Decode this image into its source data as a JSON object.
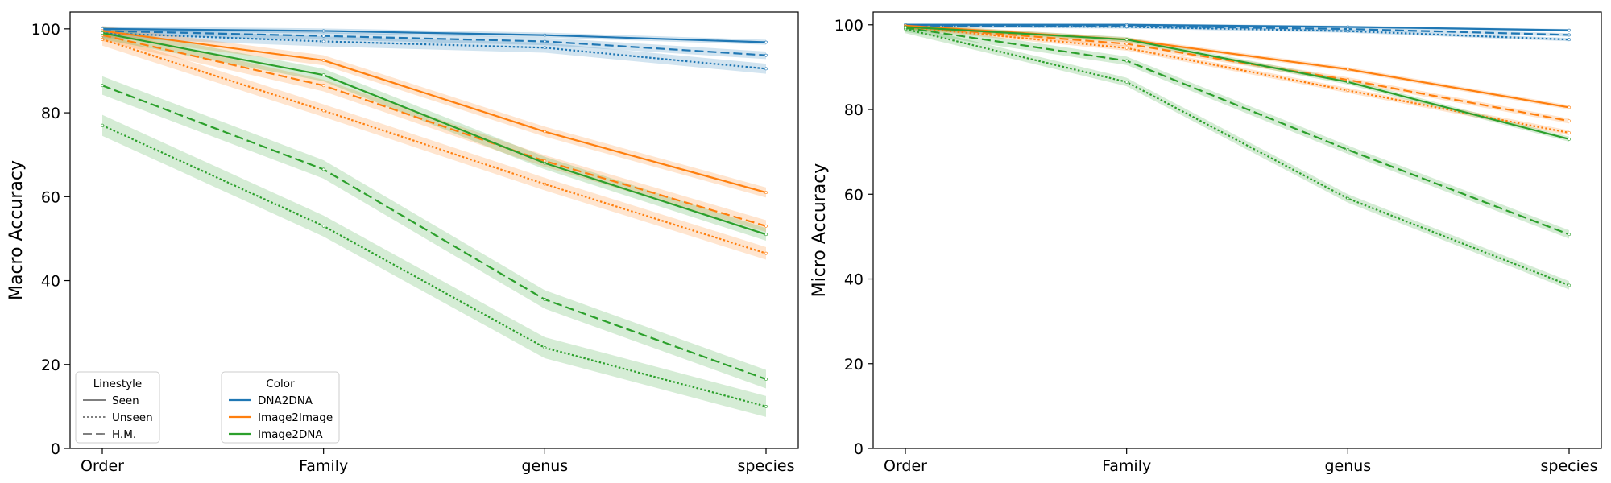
{
  "colors": {
    "DNA2DNA": "#1f77b4",
    "Image2Image": "#ff7f0e",
    "Image2DNA": "#2ca02c",
    "legend_line": "#555555"
  },
  "legends": {
    "linestyle": {
      "title": "Linestyle",
      "entries": [
        {
          "label": "Seen",
          "style": "solid"
        },
        {
          "label": "Unseen",
          "style": "dotted"
        },
        {
          "label": "H.M.",
          "style": "dashed"
        }
      ]
    },
    "color": {
      "title": "Color",
      "entries": [
        {
          "label": "DNA2DNA",
          "color": "#1f77b4"
        },
        {
          "label": "Image2Image",
          "color": "#ff7f0e"
        },
        {
          "label": "Image2DNA",
          "color": "#2ca02c"
        }
      ]
    }
  },
  "chart_data": [
    {
      "type": "line",
      "ylabel": "Macro Accuracy",
      "xlabel": "",
      "categories": [
        "Order",
        "Family",
        "genus",
        "species"
      ],
      "ylim": [
        0,
        104
      ],
      "yticks": [
        0,
        20,
        40,
        60,
        80,
        100
      ],
      "legend": "lower-left",
      "grid": false,
      "series": [
        {
          "method": "DNA2DNA",
          "split": "Seen",
          "values": [
            100.0,
            99.5,
            98.5,
            96.8
          ],
          "band": 0.6
        },
        {
          "method": "DNA2DNA",
          "split": "Unseen",
          "values": [
            99.0,
            97.0,
            95.5,
            90.5
          ],
          "band": 1.2
        },
        {
          "method": "DNA2DNA",
          "split": "H.M.",
          "values": [
            99.5,
            98.3,
            97.0,
            93.7
          ],
          "band": 0.9
        },
        {
          "method": "Image2Image",
          "split": "Seen",
          "values": [
            99.5,
            92.5,
            75.5,
            61.0
          ],
          "band": 1.2
        },
        {
          "method": "Image2Image",
          "split": "Unseen",
          "values": [
            97.5,
            80.5,
            63.0,
            46.5
          ],
          "band": 1.5
        },
        {
          "method": "Image2Image",
          "split": "H.M.",
          "values": [
            98.5,
            86.5,
            68.5,
            53.0
          ],
          "band": 1.4
        },
        {
          "method": "Image2DNA",
          "split": "Seen",
          "values": [
            99.0,
            89.0,
            68.0,
            51.0
          ],
          "band": 1.5
        },
        {
          "method": "Image2DNA",
          "split": "Unseen",
          "values": [
            77.0,
            53.0,
            24.0,
            10.0
          ],
          "band": 2.5
        },
        {
          "method": "Image2DNA",
          "split": "H.M.",
          "values": [
            86.5,
            66.5,
            35.5,
            16.5
          ],
          "band": 2.2
        }
      ]
    },
    {
      "type": "line",
      "ylabel": "Micro Accuracy",
      "xlabel": "",
      "categories": [
        "Order",
        "Family",
        "genus",
        "species"
      ],
      "ylim": [
        0,
        103
      ],
      "yticks": [
        0,
        20,
        40,
        60,
        80,
        100
      ],
      "grid": false,
      "series": [
        {
          "method": "DNA2DNA",
          "split": "Seen",
          "values": [
            100.0,
            100.0,
            99.5,
            98.7
          ],
          "band": 0.3
        },
        {
          "method": "DNA2DNA",
          "split": "Unseen",
          "values": [
            99.7,
            99.5,
            98.5,
            96.5
          ],
          "band": 0.4
        },
        {
          "method": "DNA2DNA",
          "split": "H.M.",
          "values": [
            99.8,
            99.7,
            99.0,
            97.6
          ],
          "band": 0.4
        },
        {
          "method": "Image2Image",
          "split": "Seen",
          "values": [
            99.8,
            96.5,
            89.5,
            80.5
          ],
          "band": 0.5
        },
        {
          "method": "Image2Image",
          "split": "Unseen",
          "values": [
            99.5,
            94.5,
            84.5,
            74.5
          ],
          "band": 0.6
        },
        {
          "method": "Image2Image",
          "split": "H.M.",
          "values": [
            99.6,
            95.5,
            87.0,
            77.3
          ],
          "band": 0.6
        },
        {
          "method": "Image2DNA",
          "split": "Seen",
          "values": [
            99.5,
            96.5,
            86.5,
            73.0
          ],
          "band": 0.6
        },
        {
          "method": "Image2DNA",
          "split": "Unseen",
          "values": [
            99.0,
            86.5,
            59.0,
            38.5
          ],
          "band": 1.0
        },
        {
          "method": "Image2DNA",
          "split": "H.M.",
          "values": [
            99.3,
            91.5,
            70.5,
            50.5
          ],
          "band": 1.0
        }
      ]
    }
  ]
}
